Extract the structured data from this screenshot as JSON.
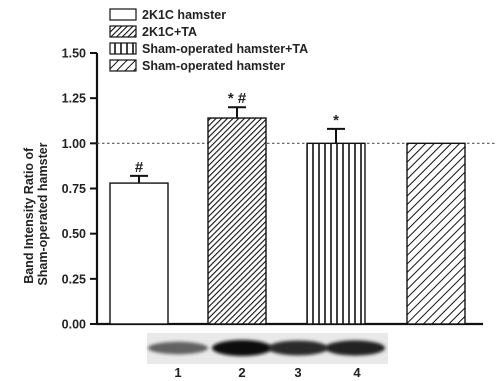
{
  "chart_data": {
    "type": "bar",
    "categories": [
      "1",
      "2",
      "3",
      "4"
    ],
    "values": [
      0.78,
      1.14,
      1.0,
      1.0
    ],
    "errors": [
      0.04,
      0.06,
      0.08,
      0.0
    ],
    "annotations": [
      "#",
      "* #",
      "*",
      ""
    ],
    "series": [
      {
        "name": "2K1C hamster",
        "values": [
          0.78,
          null,
          null,
          null
        ],
        "pattern": "open"
      },
      {
        "name": "2K1C+TA",
        "values": [
          null,
          1.14,
          null,
          null
        ],
        "pattern": "dense-diagonal"
      },
      {
        "name": "Sham-operated hamster+TA",
        "values": [
          null,
          null,
          1.0,
          null
        ],
        "pattern": "vertical-stripes"
      },
      {
        "name": "Sham-operated hamster",
        "values": [
          null,
          null,
          null,
          1.0
        ],
        "pattern": "diagonal"
      }
    ],
    "title": "",
    "xlabel": "",
    "ylabel": "Band Intensity Ratio of Sham-operated hamster",
    "ylabel_lines": [
      "Band Intensity Ratio of",
      "Sham-operated hamster"
    ],
    "ylim": [
      0,
      1.5
    ],
    "yticks": [
      "0.00",
      "0.25",
      "0.50",
      "0.75",
      "1.00",
      "1.25",
      "1.50"
    ],
    "reference_line": 1.0,
    "grid": false,
    "legend_position": "top-left",
    "band_intensities": [
      0.55,
      1.0,
      0.85,
      0.9
    ]
  },
  "colors": {
    "ink": "#111111",
    "bar_fill": "#ffffff",
    "reference_line": "#555555"
  }
}
